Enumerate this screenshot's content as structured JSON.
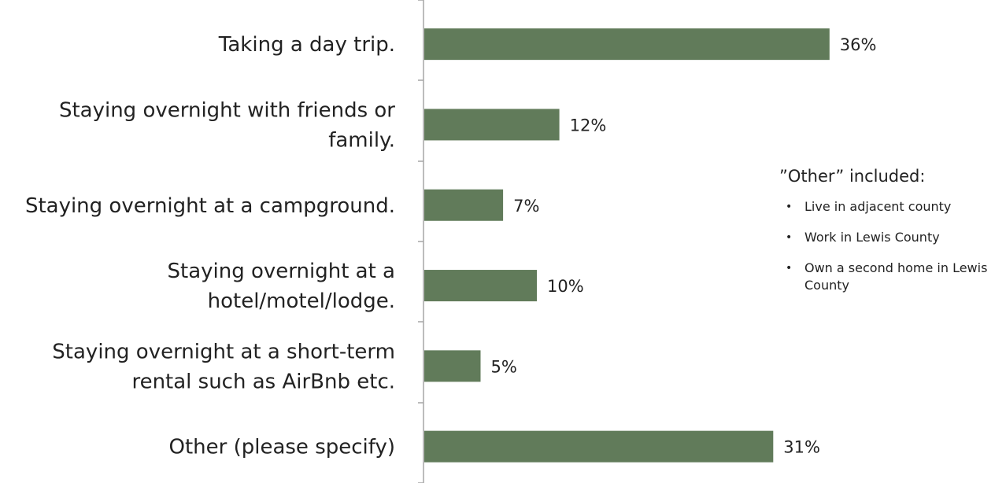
{
  "chart_data": {
    "type": "bar",
    "orientation": "horizontal",
    "categories": [
      "Taking a day trip.",
      "Staying overnight with friends or family.",
      "Staying overnight at a campground.",
      "Staying overnight at a hotel/motel/lodge.",
      "Staying overnight at a short-term rental such as AirBnb etc.",
      "Other (please specify)"
    ],
    "category_lines": [
      [
        "Taking a day trip."
      ],
      [
        "Staying overnight with friends or",
        "family."
      ],
      [
        "Staying overnight at a campground."
      ],
      [
        "Staying overnight at a",
        "hotel/motel/lodge."
      ],
      [
        "Staying overnight at a short-term",
        "rental such as AirBnb etc."
      ],
      [
        "Other (please specify)"
      ]
    ],
    "values": [
      36,
      12,
      7,
      10,
      5,
      31
    ],
    "value_labels": [
      "36%",
      "12%",
      "7%",
      "10%",
      "5%",
      "31%"
    ],
    "unit": "%",
    "xlim": [
      0,
      40
    ],
    "bar_color": "#617B5A",
    "grid": false,
    "legend": "none"
  },
  "annotation": {
    "title": "”Other” included:",
    "bullet": "•",
    "items": [
      "Live in adjacent county",
      "Work in Lewis County",
      "Own a second home in Lewis County"
    ]
  }
}
